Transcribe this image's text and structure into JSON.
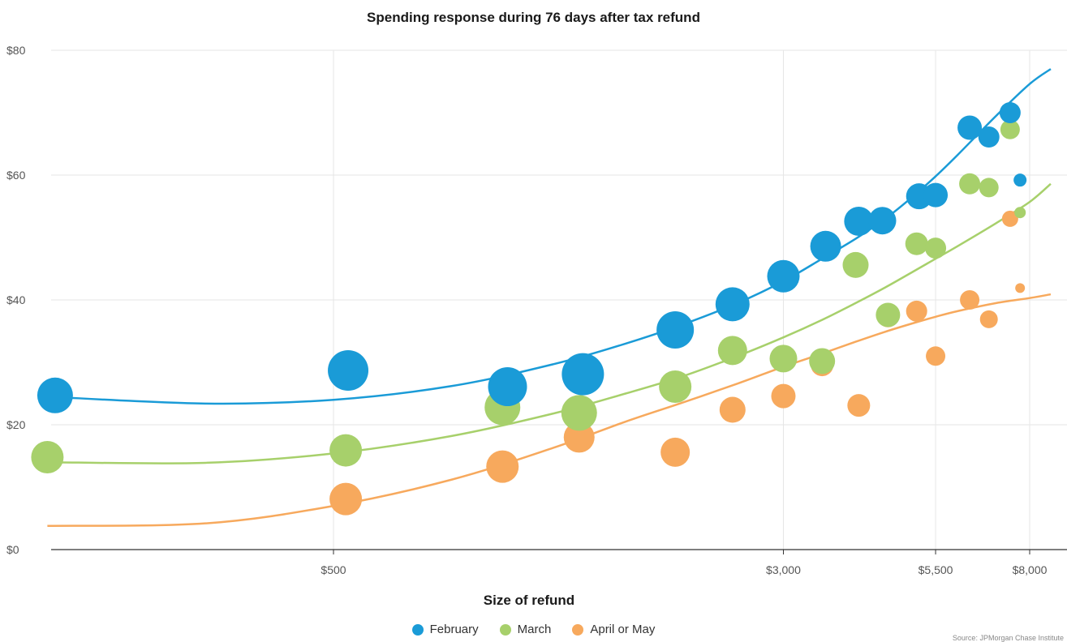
{
  "chart_data": {
    "type": "scatter",
    "title": "Spending response during 76 days after tax refund",
    "xlabel": "Size of refund",
    "ylabel": "",
    "x_scale": "log",
    "x_ticks": [
      {
        "value": 500,
        "label": "$500"
      },
      {
        "value": 3000,
        "label": "$3,000"
      },
      {
        "value": 5500,
        "label": "$5,500"
      },
      {
        "value": 8000,
        "label": "$8,000"
      }
    ],
    "y_ticks": [
      {
        "value": 0,
        "label": "$0"
      },
      {
        "value": 20,
        "label": "$20"
      },
      {
        "value": 40,
        "label": "$40"
      },
      {
        "value": 60,
        "label": "$60"
      },
      {
        "value": 80,
        "label": "$80"
      }
    ],
    "ylim": [
      0,
      80
    ],
    "grid": true,
    "legend_position": "bottom",
    "series": [
      {
        "name": "February",
        "color": "#1a9bd7",
        "points": [
          {
            "x": 165,
            "y": 24.7,
            "w": 22
          },
          {
            "x": 530,
            "y": 28.7,
            "w": 25
          },
          {
            "x": 1000,
            "y": 26.1,
            "w": 24
          },
          {
            "x": 1350,
            "y": 28.1,
            "w": 26
          },
          {
            "x": 1950,
            "y": 35.2,
            "w": 23
          },
          {
            "x": 2450,
            "y": 39.3,
            "w": 21
          },
          {
            "x": 3000,
            "y": 43.8,
            "w": 20
          },
          {
            "x": 3550,
            "y": 48.6,
            "w": 19
          },
          {
            "x": 4050,
            "y": 52.6,
            "w": 18
          },
          {
            "x": 4450,
            "y": 52.7,
            "w": 17
          },
          {
            "x": 5150,
            "y": 56.6,
            "w": 16
          },
          {
            "x": 5500,
            "y": 56.8,
            "w": 15
          },
          {
            "x": 6300,
            "y": 67.6,
            "w": 15
          },
          {
            "x": 6800,
            "y": 66.1,
            "w": 13
          },
          {
            "x": 7400,
            "y": 70.0,
            "w": 13
          },
          {
            "x": 7700,
            "y": 59.2,
            "w": 8
          }
        ],
        "fit_curve": [
          [
            160,
            24.5
          ],
          [
            300,
            23.4
          ],
          [
            500,
            24.0
          ],
          [
            800,
            26.2
          ],
          [
            1200,
            29.7
          ],
          [
            1600,
            33.0
          ],
          [
            2000,
            36.0
          ],
          [
            2500,
            39.5
          ],
          [
            3000,
            43.0
          ],
          [
            3500,
            46.6
          ],
          [
            4000,
            49.8
          ],
          [
            4500,
            53.0
          ],
          [
            5000,
            56.4
          ],
          [
            5500,
            59.8
          ],
          [
            6000,
            63.2
          ],
          [
            7000,
            69.5
          ],
          [
            8000,
            74.6
          ],
          [
            8700,
            77.0
          ]
        ]
      },
      {
        "name": "March",
        "color": "#a7d06b",
        "points": [
          {
            "x": 160,
            "y": 14.8,
            "w": 20
          },
          {
            "x": 525,
            "y": 15.9,
            "w": 20
          },
          {
            "x": 980,
            "y": 22.8,
            "w": 22
          },
          {
            "x": 1330,
            "y": 21.9,
            "w": 22
          },
          {
            "x": 1950,
            "y": 26.1,
            "w": 20
          },
          {
            "x": 2450,
            "y": 31.9,
            "w": 18
          },
          {
            "x": 3000,
            "y": 30.6,
            "w": 17
          },
          {
            "x": 3500,
            "y": 30.2,
            "w": 16
          },
          {
            "x": 4000,
            "y": 45.6,
            "w": 16
          },
          {
            "x": 4550,
            "y": 37.6,
            "w": 15
          },
          {
            "x": 5100,
            "y": 49.0,
            "w": 14
          },
          {
            "x": 5500,
            "y": 48.3,
            "w": 13
          },
          {
            "x": 6300,
            "y": 58.6,
            "w": 13
          },
          {
            "x": 6800,
            "y": 58.0,
            "w": 12
          },
          {
            "x": 7400,
            "y": 67.3,
            "w": 12
          },
          {
            "x": 7700,
            "y": 54.0,
            "w": 7
          }
        ],
        "fit_curve": [
          [
            160,
            14.0
          ],
          [
            300,
            13.9
          ],
          [
            500,
            15.4
          ],
          [
            800,
            18.2
          ],
          [
            1200,
            21.8
          ],
          [
            1600,
            25.0
          ],
          [
            2000,
            27.7
          ],
          [
            2500,
            31.0
          ],
          [
            3000,
            34.0
          ],
          [
            3500,
            36.8
          ],
          [
            4000,
            39.5
          ],
          [
            4500,
            42.0
          ],
          [
            5000,
            44.4
          ],
          [
            5500,
            46.6
          ],
          [
            6000,
            48.6
          ],
          [
            7000,
            52.3
          ],
          [
            8000,
            55.7
          ],
          [
            8700,
            58.6
          ]
        ]
      },
      {
        "name": "April or May",
        "color": "#f7a95d",
        "points": [
          {
            "x": 525,
            "y": 8.1,
            "w": 20
          },
          {
            "x": 980,
            "y": 13.3,
            "w": 20
          },
          {
            "x": 1330,
            "y": 18.0,
            "w": 19
          },
          {
            "x": 1950,
            "y": 15.6,
            "w": 18
          },
          {
            "x": 2450,
            "y": 22.4,
            "w": 16
          },
          {
            "x": 3000,
            "y": 24.6,
            "w": 15
          },
          {
            "x": 3500,
            "y": 29.6,
            "w": 14
          },
          {
            "x": 4050,
            "y": 23.1,
            "w": 14
          },
          {
            "x": 4550,
            "y": 37.3,
            "w": 13
          },
          {
            "x": 5100,
            "y": 38.2,
            "w": 13
          },
          {
            "x": 5500,
            "y": 31.0,
            "w": 12
          },
          {
            "x": 6300,
            "y": 40.0,
            "w": 12
          },
          {
            "x": 6800,
            "y": 36.9,
            "w": 11
          },
          {
            "x": 7400,
            "y": 53.0,
            "w": 10
          },
          {
            "x": 7700,
            "y": 41.9,
            "w": 6
          }
        ],
        "fit_curve": [
          [
            160,
            3.8
          ],
          [
            300,
            4.2
          ],
          [
            500,
            7.0
          ],
          [
            800,
            11.2
          ],
          [
            1200,
            16.3
          ],
          [
            1600,
            20.5
          ],
          [
            2000,
            23.5
          ],
          [
            2500,
            26.6
          ],
          [
            3000,
            29.3
          ],
          [
            3500,
            31.4
          ],
          [
            4000,
            33.3
          ],
          [
            4500,
            34.9
          ],
          [
            5000,
            36.2
          ],
          [
            5500,
            37.3
          ],
          [
            6000,
            38.2
          ],
          [
            7000,
            39.5
          ],
          [
            8000,
            40.3
          ],
          [
            8700,
            40.9
          ]
        ]
      }
    ]
  },
  "legend": {
    "items": [
      {
        "label": "February",
        "color": "#1a9bd7"
      },
      {
        "label": "March",
        "color": "#a7d06b"
      },
      {
        "label": "April or May",
        "color": "#f7a95d"
      }
    ]
  },
  "source": "Source: JPMorgan Chase Institute"
}
